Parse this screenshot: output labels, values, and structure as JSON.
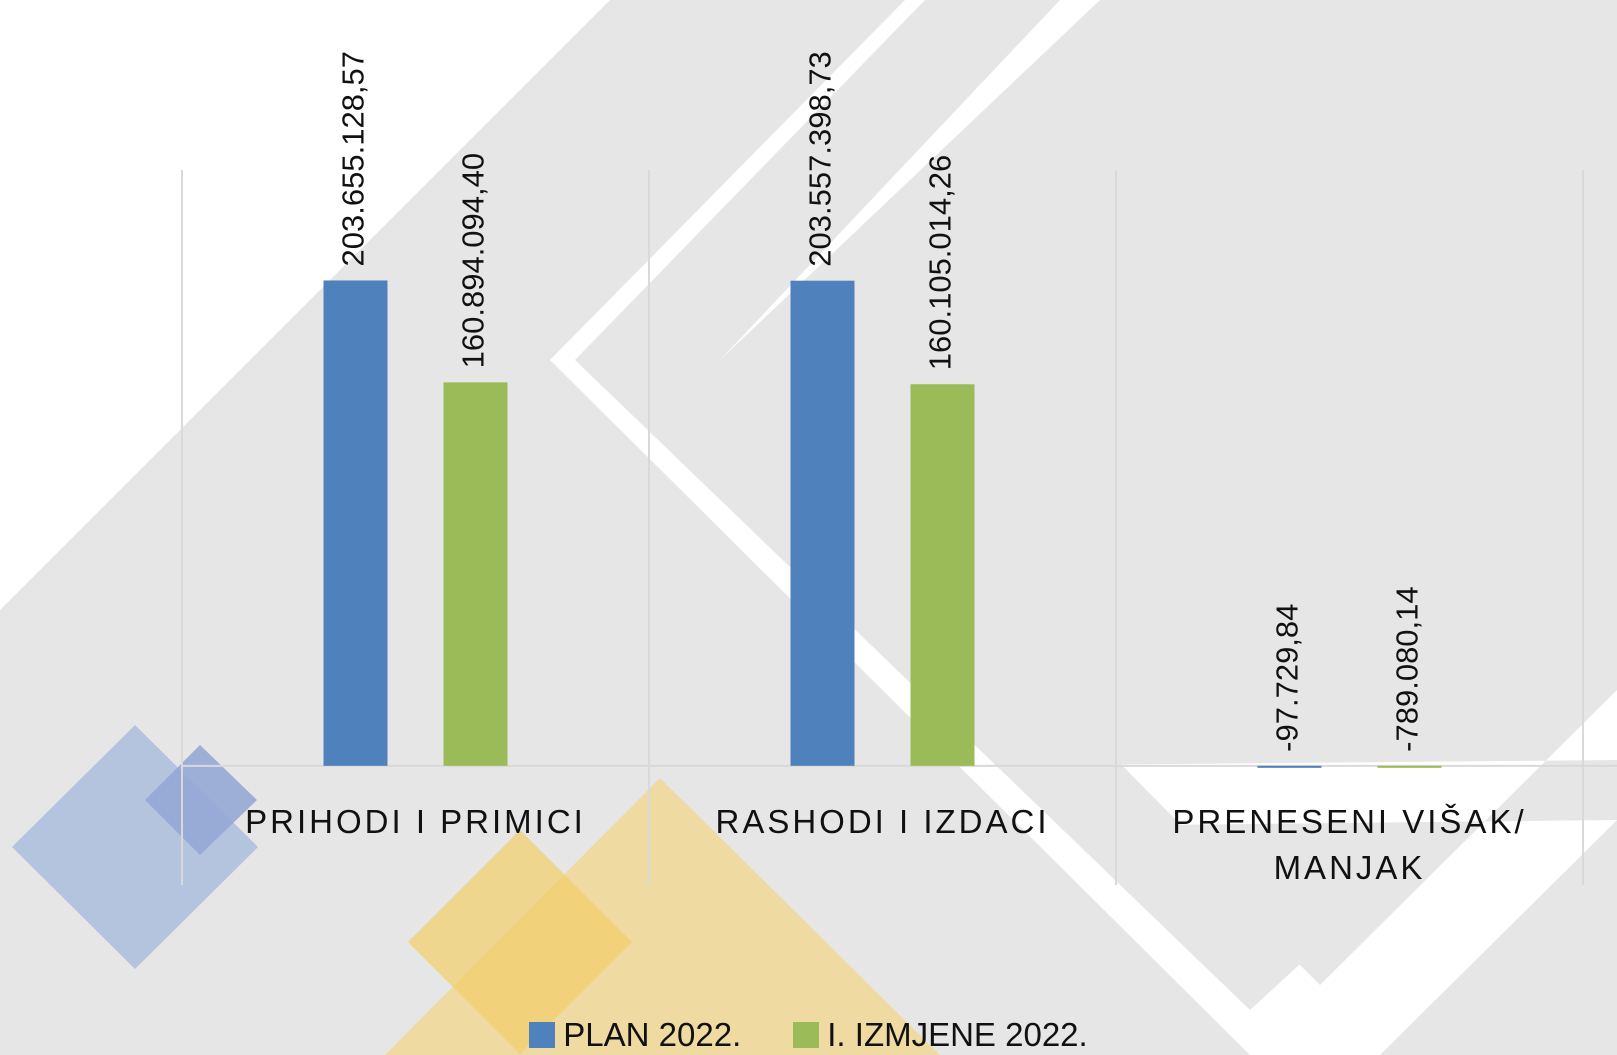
{
  "chart_data": {
    "type": "bar",
    "categories": [
      "PRIHODI I PRIMICI",
      "RASHODI I IZDACI",
      "PRENESENI VIŠAK/ MANJAK"
    ],
    "series": [
      {
        "name": "PLAN 2022.",
        "color": "#4f81bd",
        "values": [
          203655128.57,
          203557398.73,
          -97729.84
        ],
        "value_labels": [
          "203.655.128,57",
          "203.557.398,73",
          "-97.729,84"
        ]
      },
      {
        "name": "I. IZMJENE 2022.",
        "color": "#9bbb59",
        "values": [
          160894094.4,
          160105014.26,
          -789080.14
        ],
        "value_labels": [
          "160.894.094,40",
          "160.105.014,26",
          "-789.080,14"
        ]
      }
    ],
    "ylim": [
      -50000000,
      250000000
    ],
    "legend": "bottom"
  }
}
